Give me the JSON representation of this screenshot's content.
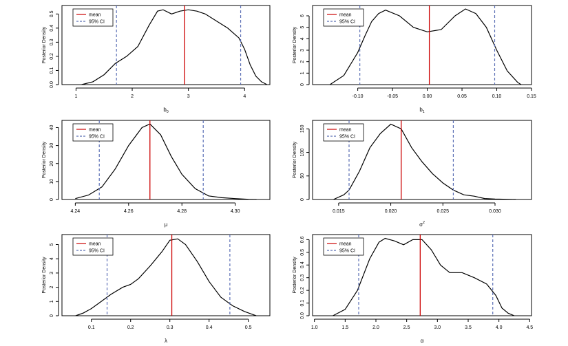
{
  "legend": {
    "mean_label": "mean",
    "ci_label": "95% CI"
  },
  "colors": {
    "mean_line": "#cc0000",
    "ci_line": "#5b6fb5",
    "density": "#000000",
    "axis": "#000000"
  },
  "chart_data": [
    {
      "type": "line",
      "ylabel": "Posterior Density",
      "xlabel": "b",
      "xlabel_sub": "0",
      "xlabel_sup": "",
      "xlim": [
        0.75,
        4.45
      ],
      "ylim": [
        0,
        0.56
      ],
      "xticks": [
        "1",
        "2",
        "3",
        "4"
      ],
      "xtick_values": [
        1,
        2,
        3,
        4
      ],
      "yticks": [
        "0.0",
        "0.1",
        "0.2",
        "0.3",
        "0.4",
        "0.5"
      ],
      "ytick_values": [
        0,
        0.1,
        0.2,
        0.3,
        0.4,
        0.5
      ],
      "mean": 2.93,
      "ci": [
        1.72,
        3.93
      ],
      "series": [
        {
          "x": [
            1.1,
            1.3,
            1.5,
            1.7,
            1.9,
            2.1,
            2.3,
            2.45,
            2.55,
            2.7,
            2.85,
            3.0,
            3.15,
            3.3,
            3.5,
            3.7,
            3.9,
            4.0,
            4.1,
            4.2,
            4.3,
            4.4
          ],
          "y": [
            0.0,
            0.02,
            0.07,
            0.15,
            0.2,
            0.27,
            0.42,
            0.52,
            0.53,
            0.5,
            0.52,
            0.53,
            0.52,
            0.5,
            0.45,
            0.4,
            0.33,
            0.25,
            0.14,
            0.06,
            0.02,
            0.0
          ]
        }
      ]
    },
    {
      "type": "line",
      "ylabel": "Posterior Density",
      "xlabel": "b",
      "xlabel_sub": "1",
      "xlabel_sup": "",
      "xlim": [
        -0.165,
        0.15
      ],
      "ylim": [
        0,
        6.9
      ],
      "xticks": [
        "-0.10",
        "-0.05",
        "0.00",
        "0.05",
        "0.10",
        "0.15"
      ],
      "xtick_values": [
        -0.1,
        -0.05,
        0,
        0.05,
        0.1,
        0.15
      ],
      "yticks": [
        "0",
        "1",
        "2",
        "3",
        "4",
        "5",
        "6"
      ],
      "ytick_values": [
        0,
        1,
        2,
        3,
        4,
        5,
        6
      ],
      "mean": 0.003,
      "ci": [
        -0.097,
        0.097
      ],
      "series": [
        {
          "x": [
            -0.14,
            -0.12,
            -0.1,
            -0.09,
            -0.08,
            -0.07,
            -0.06,
            -0.04,
            -0.02,
            0.0,
            0.02,
            0.04,
            0.055,
            0.07,
            0.085,
            0.1,
            0.115,
            0.13,
            0.135
          ],
          "y": [
            0.0,
            0.8,
            2.8,
            4.2,
            5.5,
            6.2,
            6.5,
            6.0,
            5.0,
            4.6,
            4.8,
            6.0,
            6.6,
            6.2,
            5.0,
            3.0,
            1.2,
            0.2,
            0.0
          ]
        }
      ]
    },
    {
      "type": "line",
      "ylabel": "Posterior Density",
      "xlabel": "μ",
      "xlabel_sub": "",
      "xlabel_sup": "",
      "xlim": [
        4.235,
        4.313
      ],
      "ylim": [
        0,
        44
      ],
      "xticks": [
        "4.24",
        "4.26",
        "4.28",
        "4.30"
      ],
      "xtick_values": [
        4.24,
        4.26,
        4.28,
        4.3
      ],
      "yticks": [
        "0",
        "10",
        "20",
        "30",
        "40"
      ],
      "ytick_values": [
        0,
        10,
        20,
        30,
        40
      ],
      "mean": 4.268,
      "ci": [
        4.249,
        4.288
      ],
      "series": [
        {
          "x": [
            4.24,
            4.245,
            4.25,
            4.255,
            4.26,
            4.265,
            4.268,
            4.272,
            4.276,
            4.28,
            4.285,
            4.29,
            4.295,
            4.3,
            4.305,
            4.308
          ],
          "y": [
            0.5,
            2.5,
            7.0,
            17.0,
            30.0,
            40.0,
            42.0,
            36.0,
            24.0,
            14.0,
            6.0,
            2.0,
            1.0,
            0.5,
            0.1,
            0.0
          ]
        }
      ]
    },
    {
      "type": "line",
      "ylabel": "Posterior Density",
      "xlabel": "σ",
      "xlabel_sub": "",
      "xlabel_sup": "2",
      "xlim": [
        0.0125,
        0.0335
      ],
      "ylim": [
        0,
        168
      ],
      "xticks": [
        "0.015",
        "0.020",
        "0.025",
        "0.030"
      ],
      "xtick_values": [
        0.015,
        0.02,
        0.025,
        0.03
      ],
      "yticks": [
        "0",
        "50",
        "100",
        "150"
      ],
      "ytick_values": [
        0,
        50,
        100,
        150
      ],
      "mean": 0.021,
      "ci": [
        0.016,
        0.026
      ],
      "series": [
        {
          "x": [
            0.0145,
            0.0155,
            0.016,
            0.017,
            0.018,
            0.019,
            0.02,
            0.021,
            0.022,
            0.023,
            0.024,
            0.025,
            0.026,
            0.027,
            0.028,
            0.029,
            0.03,
            0.032
          ],
          "y": [
            0.0,
            10.0,
            20.0,
            60.0,
            110.0,
            140.0,
            160.0,
            150.0,
            110.0,
            80.0,
            55.0,
            35.0,
            20.0,
            10.0,
            7.0,
            2.0,
            1.0,
            0.0
          ]
        }
      ]
    },
    {
      "type": "line",
      "ylabel": "Posterior Density",
      "xlabel": "λ",
      "xlabel_sub": "",
      "xlabel_sup": "",
      "xlim": [
        0.025,
        0.555
      ],
      "ylim": [
        0,
        5.7
      ],
      "xticks": [
        "0.1",
        "0.2",
        "0.3",
        "0.4",
        "0.5"
      ],
      "xtick_values": [
        0.1,
        0.2,
        0.3,
        0.4,
        0.5
      ],
      "yticks": [
        "0",
        "1",
        "2",
        "3",
        "4",
        "5"
      ],
      "ytick_values": [
        0,
        1,
        2,
        3,
        4,
        5
      ],
      "mean": 0.305,
      "ci": [
        0.14,
        0.453
      ],
      "series": [
        {
          "x": [
            0.06,
            0.08,
            0.1,
            0.12,
            0.15,
            0.18,
            0.2,
            0.22,
            0.25,
            0.28,
            0.3,
            0.32,
            0.34,
            0.37,
            0.4,
            0.43,
            0.46,
            0.49,
            0.51,
            0.52
          ],
          "y": [
            0.0,
            0.2,
            0.5,
            0.9,
            1.5,
            2.0,
            2.2,
            2.6,
            3.5,
            4.5,
            5.3,
            5.4,
            5.0,
            3.8,
            2.4,
            1.3,
            0.7,
            0.3,
            0.1,
            0.0
          ]
        }
      ]
    },
    {
      "type": "line",
      "ylabel": "Posterior Density",
      "xlabel": "α",
      "xlabel_sub": "",
      "xlabel_sup": "",
      "xlim": [
        0.97,
        4.53
      ],
      "ylim": [
        0,
        0.64
      ],
      "xticks": [
        "1.0",
        "1.5",
        "2.0",
        "2.5",
        "3.0",
        "3.5",
        "4.0",
        "4.5"
      ],
      "xtick_values": [
        1,
        1.5,
        2,
        2.5,
        3,
        3.5,
        4,
        4.5
      ],
      "yticks": [
        "0.0",
        "0.1",
        "0.2",
        "0.3",
        "0.4",
        "0.5",
        "0.6"
      ],
      "ytick_values": [
        0,
        0.1,
        0.2,
        0.3,
        0.4,
        0.5,
        0.6
      ],
      "mean": 2.72,
      "ci": [
        1.72,
        3.9
      ],
      "series": [
        {
          "x": [
            1.3,
            1.5,
            1.7,
            1.9,
            2.05,
            2.15,
            2.3,
            2.45,
            2.6,
            2.75,
            2.9,
            3.05,
            3.2,
            3.4,
            3.6,
            3.8,
            3.95,
            4.05,
            4.15,
            4.25
          ],
          "y": [
            0.0,
            0.05,
            0.2,
            0.45,
            0.58,
            0.61,
            0.59,
            0.56,
            0.6,
            0.6,
            0.52,
            0.4,
            0.34,
            0.34,
            0.3,
            0.25,
            0.16,
            0.06,
            0.02,
            0.0
          ]
        }
      ]
    }
  ]
}
